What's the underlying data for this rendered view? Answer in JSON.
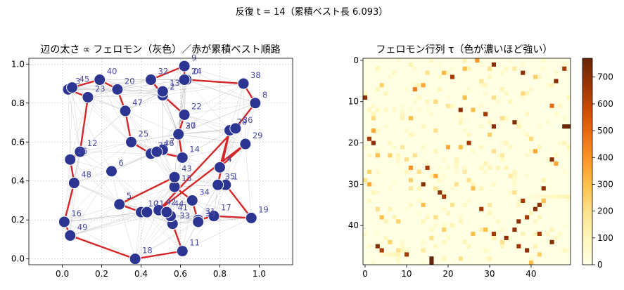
{
  "figure": {
    "suptitle": "反復 t = 14（累積ベスト長 6.093）"
  },
  "colors": {
    "route": "#d62728",
    "node_fill": "#2c3591",
    "node_label": "#4a4aa6",
    "pheromone_edges": "#b0b0b0",
    "grid": "#cfcfcf"
  },
  "chart_data": [
    {
      "type": "scatter",
      "title": "辺の太さ ∝ フェロモン（灰色）／赤が累積ベスト順路",
      "xlim": [
        -0.17,
        1.17
      ],
      "ylim": [
        -0.03,
        1.03
      ],
      "xticks": [
        0.0,
        0.2,
        0.4,
        0.6,
        0.8,
        1.0
      ],
      "yticks": [
        0.0,
        0.2,
        0.4,
        0.6,
        0.8,
        1.0
      ],
      "grid": true,
      "nodes": [
        {
          "id": 0,
          "x": 0.63,
          "y": 0.92
        },
        {
          "id": 1,
          "x": 0.83,
          "y": 0.38
        },
        {
          "id": 2,
          "x": 0.51,
          "y": 0.84
        },
        {
          "id": 3,
          "x": 0.03,
          "y": 0.87
        },
        {
          "id": 4,
          "x": 0.8,
          "y": 0.47
        },
        {
          "id": 5,
          "x": 0.29,
          "y": 0.28
        },
        {
          "id": 6,
          "x": 0.25,
          "y": 0.45
        },
        {
          "id": 7,
          "x": 0.51,
          "y": 0.56
        },
        {
          "id": 8,
          "x": 0.98,
          "y": 0.8
        },
        {
          "id": 9,
          "x": 0.62,
          "y": 0.99
        },
        {
          "id": 10,
          "x": 0.4,
          "y": 0.24
        },
        {
          "id": 11,
          "x": 0.61,
          "y": 0.04
        },
        {
          "id": 12,
          "x": 0.09,
          "y": 0.55
        },
        {
          "id": 13,
          "x": 0.51,
          "y": 0.86
        },
        {
          "id": 14,
          "x": 0.61,
          "y": 0.52
        },
        {
          "id": 15,
          "x": 0.57,
          "y": 0.37
        },
        {
          "id": 16,
          "x": 0.01,
          "y": 0.19
        },
        {
          "id": 17,
          "x": 0.77,
          "y": 0.22
        },
        {
          "id": 18,
          "x": 0.37,
          "y": 0.0
        },
        {
          "id": 19,
          "x": 0.96,
          "y": 0.21
        },
        {
          "id": 20,
          "x": 0.28,
          "y": 0.87
        },
        {
          "id": 21,
          "x": 0.43,
          "y": 0.24
        },
        {
          "id": 22,
          "x": 0.62,
          "y": 0.74
        },
        {
          "id": 23,
          "x": 0.13,
          "y": 0.83
        },
        {
          "id": 24,
          "x": 0.62,
          "y": 0.92
        },
        {
          "id": 25,
          "x": 0.35,
          "y": 0.6
        },
        {
          "id": 26,
          "x": 0.04,
          "y": 0.51
        },
        {
          "id": 27,
          "x": 0.59,
          "y": 0.64
        },
        {
          "id": 28,
          "x": 0.85,
          "y": 0.66
        },
        {
          "id": 29,
          "x": 0.93,
          "y": 0.59
        },
        {
          "id": 30,
          "x": 0.59,
          "y": 0.64
        },
        {
          "id": 31,
          "x": 0.69,
          "y": 0.2
        },
        {
          "id": 32,
          "x": 0.45,
          "y": 0.92
        },
        {
          "id": 33,
          "x": 0.56,
          "y": 0.18
        },
        {
          "id": 34,
          "x": 0.66,
          "y": 0.3
        },
        {
          "id": 35,
          "x": 0.79,
          "y": 0.38
        },
        {
          "id": 36,
          "x": 0.88,
          "y": 0.67
        },
        {
          "id": 37,
          "x": 0.45,
          "y": 0.54
        },
        {
          "id": 38,
          "x": 0.92,
          "y": 0.9
        },
        {
          "id": 39,
          "x": 0.69,
          "y": 0.19
        },
        {
          "id": 40,
          "x": 0.19,
          "y": 0.92
        },
        {
          "id": 41,
          "x": 0.55,
          "y": 0.22
        },
        {
          "id": 42,
          "x": 0.49,
          "y": 0.25
        },
        {
          "id": 43,
          "x": 0.57,
          "y": 0.42
        },
        {
          "id": 44,
          "x": 0.53,
          "y": 0.24
        },
        {
          "id": 45,
          "x": 0.05,
          "y": 0.88
        },
        {
          "id": 46,
          "x": 0.48,
          "y": 0.55
        },
        {
          "id": 47,
          "x": 0.32,
          "y": 0.76
        },
        {
          "id": 48,
          "x": 0.06,
          "y": 0.39
        },
        {
          "id": 49,
          "x": 0.04,
          "y": 0.12
        }
      ],
      "tour": [
        9,
        24,
        0,
        38,
        8,
        36,
        42,
        29,
        4,
        28,
        35,
        1,
        19,
        17,
        31,
        39,
        34,
        15,
        43,
        5,
        10,
        21,
        42,
        33,
        11,
        18,
        49,
        16,
        48,
        26,
        12,
        23,
        3,
        45,
        40,
        20,
        47,
        25,
        37,
        46,
        14,
        27,
        30,
        22,
        2,
        32,
        9
      ]
    },
    {
      "type": "heatmap",
      "title": "フェロモン行列 τ（色が濃いほど強い）",
      "size": 50,
      "xticks": [
        0,
        10,
        20,
        30,
        40
      ],
      "yticks": [
        0,
        10,
        20,
        30,
        40
      ],
      "colorbar": {
        "ticks": [
          0,
          100,
          200,
          300,
          400,
          500,
          600,
          700
        ],
        "range": [
          0,
          770
        ],
        "colormap": "YlOrBr"
      },
      "baseline": 5,
      "strong_cells": [
        {
          "r": 0,
          "c": 27,
          "v": 400
        },
        {
          "r": 1,
          "c": 31,
          "v": 700
        },
        {
          "r": 2,
          "c": 24,
          "v": 300
        },
        {
          "r": 2,
          "c": 30,
          "v": 200
        },
        {
          "r": 2,
          "c": 36,
          "v": 150
        },
        {
          "r": 2,
          "c": 48,
          "v": 650
        },
        {
          "r": 3,
          "c": 15,
          "v": 200
        },
        {
          "r": 3,
          "c": 19,
          "v": 320
        },
        {
          "r": 3,
          "c": 38,
          "v": 700
        },
        {
          "r": 4,
          "c": 21,
          "v": 650
        },
        {
          "r": 4,
          "c": 41,
          "v": 250
        },
        {
          "r": 5,
          "c": 28,
          "v": 180
        },
        {
          "r": 5,
          "c": 46,
          "v": 700
        },
        {
          "r": 6,
          "c": 4,
          "v": 250
        },
        {
          "r": 6,
          "c": 14,
          "v": 350
        },
        {
          "r": 7,
          "c": 12,
          "v": 450
        },
        {
          "r": 8,
          "c": 38,
          "v": 220
        },
        {
          "r": 9,
          "c": 0,
          "v": 700
        },
        {
          "r": 9,
          "c": 24,
          "v": 300
        },
        {
          "r": 9,
          "c": 31,
          "v": 200
        },
        {
          "r": 10,
          "c": 17,
          "v": 220
        },
        {
          "r": 11,
          "c": 20,
          "v": 180
        },
        {
          "r": 11,
          "c": 45,
          "v": 500
        },
        {
          "r": 12,
          "c": 23,
          "v": 700
        },
        {
          "r": 12,
          "c": 26,
          "v": 300
        },
        {
          "r": 13,
          "c": 29,
          "v": 650
        },
        {
          "r": 14,
          "c": 2,
          "v": 220
        },
        {
          "r": 14,
          "c": 11,
          "v": 300
        },
        {
          "r": 14,
          "c": 33,
          "v": 200
        },
        {
          "r": 15,
          "c": 36,
          "v": 720
        },
        {
          "r": 16,
          "c": 31,
          "v": 700
        },
        {
          "r": 16,
          "c": 48,
          "v": 770
        },
        {
          "r": 16,
          "c": 49,
          "v": 770
        },
        {
          "r": 17,
          "c": 2,
          "v": 350
        },
        {
          "r": 17,
          "c": 17,
          "v": 200
        },
        {
          "r": 18,
          "c": 30,
          "v": 250
        },
        {
          "r": 19,
          "c": 1,
          "v": 650
        },
        {
          "r": 19,
          "c": 40,
          "v": 220
        },
        {
          "r": 20,
          "c": 2,
          "v": 700
        },
        {
          "r": 20,
          "c": 25,
          "v": 650
        },
        {
          "r": 21,
          "c": 9,
          "v": 160
        },
        {
          "r": 21,
          "c": 20,
          "v": 350
        },
        {
          "r": 21,
          "c": 23,
          "v": 300
        },
        {
          "r": 22,
          "c": 31,
          "v": 200
        },
        {
          "r": 22,
          "c": 41,
          "v": 350
        },
        {
          "r": 23,
          "c": 3,
          "v": 300
        },
        {
          "r": 23,
          "c": 6,
          "v": 250
        },
        {
          "r": 23,
          "c": 12,
          "v": 200
        },
        {
          "r": 23,
          "c": 33,
          "v": 160
        },
        {
          "r": 24,
          "c": 10,
          "v": 200
        },
        {
          "r": 24,
          "c": 45,
          "v": 700
        },
        {
          "r": 25,
          "c": 46,
          "v": 350
        },
        {
          "r": 26,
          "c": 11,
          "v": 400
        },
        {
          "r": 26,
          "c": 15,
          "v": 650
        },
        {
          "r": 27,
          "c": 1,
          "v": 250
        },
        {
          "r": 27,
          "c": 13,
          "v": 200
        },
        {
          "r": 27,
          "c": 24,
          "v": 160
        },
        {
          "r": 28,
          "c": 17,
          "v": 350
        },
        {
          "r": 28,
          "c": 35,
          "v": 160
        },
        {
          "r": 29,
          "c": 0,
          "v": 200
        },
        {
          "r": 29,
          "c": 11,
          "v": 250
        },
        {
          "r": 29,
          "c": 25,
          "v": 200
        },
        {
          "r": 30,
          "c": 1,
          "v": 350
        },
        {
          "r": 30,
          "c": 14,
          "v": 700
        },
        {
          "r": 30,
          "c": 22,
          "v": 200
        },
        {
          "r": 31,
          "c": 11,
          "v": 160
        },
        {
          "r": 31,
          "c": 17,
          "v": 180
        },
        {
          "r": 31,
          "c": 26,
          "v": 300
        },
        {
          "r": 31,
          "c": 43,
          "v": 700
        },
        {
          "r": 32,
          "c": 18,
          "v": 700
        },
        {
          "r": 32,
          "c": 36,
          "v": 200
        },
        {
          "r": 33,
          "c": 19,
          "v": 650
        },
        {
          "r": 34,
          "c": 38,
          "v": 650
        },
        {
          "r": 34,
          "c": 43,
          "v": 300
        },
        {
          "r": 35,
          "c": 14,
          "v": 300
        },
        {
          "r": 35,
          "c": 21,
          "v": 200
        },
        {
          "r": 35,
          "c": 30,
          "v": 160
        },
        {
          "r": 35,
          "c": 42,
          "v": 700
        },
        {
          "r": 36,
          "c": 3,
          "v": 200
        },
        {
          "r": 36,
          "c": 28,
          "v": 650
        },
        {
          "r": 36,
          "c": 41,
          "v": 700
        },
        {
          "r": 38,
          "c": 4,
          "v": 300
        },
        {
          "r": 38,
          "c": 17,
          "v": 200
        },
        {
          "r": 38,
          "c": 39,
          "v": 650
        },
        {
          "r": 39,
          "c": 8,
          "v": 250
        },
        {
          "r": 39,
          "c": 37,
          "v": 700
        },
        {
          "r": 41,
          "c": 19,
          "v": 250
        },
        {
          "r": 41,
          "c": 29,
          "v": 300
        },
        {
          "r": 41,
          "c": 36,
          "v": 700
        },
        {
          "r": 42,
          "c": 26,
          "v": 300
        },
        {
          "r": 42,
          "c": 31,
          "v": 650
        },
        {
          "r": 42,
          "c": 42,
          "v": 650
        },
        {
          "r": 43,
          "c": 16,
          "v": 200
        },
        {
          "r": 43,
          "c": 34,
          "v": 700
        },
        {
          "r": 44,
          "c": 6,
          "v": 250
        },
        {
          "r": 44,
          "c": 33,
          "v": 200
        },
        {
          "r": 44,
          "c": 45,
          "v": 700
        },
        {
          "r": 45,
          "c": 3,
          "v": 700
        },
        {
          "r": 45,
          "c": 37,
          "v": 650
        },
        {
          "r": 46,
          "c": 4,
          "v": 650
        },
        {
          "r": 46,
          "c": 8,
          "v": 200
        },
        {
          "r": 46,
          "c": 14,
          "v": 160
        },
        {
          "r": 46,
          "c": 39,
          "v": 700
        },
        {
          "r": 47,
          "c": 10,
          "v": 650
        },
        {
          "r": 47,
          "c": 42,
          "v": 250
        },
        {
          "r": 48,
          "c": 16,
          "v": 770
        },
        {
          "r": 48,
          "c": 23,
          "v": 200
        },
        {
          "r": 49,
          "c": 16,
          "v": 770
        },
        {
          "r": 49,
          "c": 40,
          "v": 300
        }
      ]
    }
  ]
}
